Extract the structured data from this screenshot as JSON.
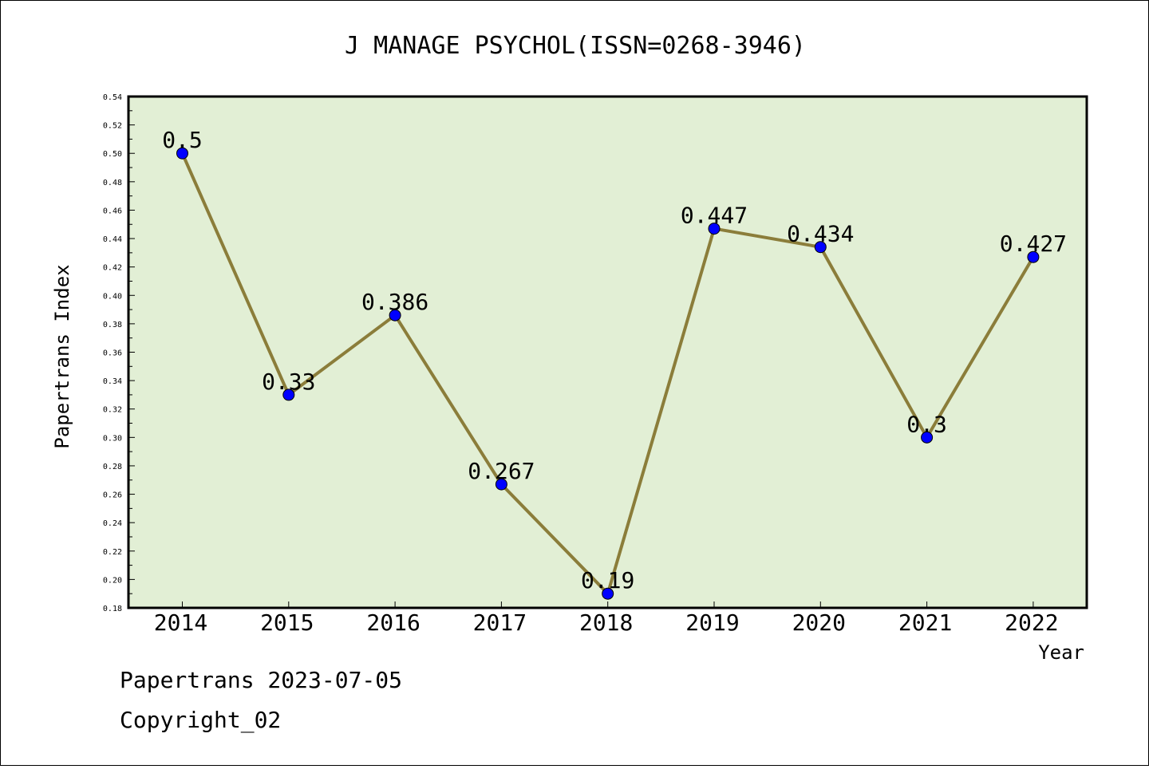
{
  "chart_data": {
    "type": "line",
    "title": "J MANAGE PSYCHOL(ISSN=0268-3946)",
    "xlabel": "Year",
    "ylabel": "Papertrans Index",
    "categories": [
      "2014",
      "2015",
      "2016",
      "2017",
      "2018",
      "2019",
      "2020",
      "2021",
      "2022"
    ],
    "series": [
      {
        "values": [
          0.5,
          0.33,
          0.386,
          0.267,
          0.19,
          0.447,
          0.434,
          0.3,
          0.427
        ],
        "labels": [
          "0.5",
          "0.33",
          "0.386",
          "0.267",
          "0.19",
          "0.447",
          "0.434",
          "0.3",
          "0.427"
        ]
      }
    ],
    "ylim": [
      0.18,
      0.54
    ],
    "yticks": [
      "0.18",
      "0.20",
      "0.22",
      "0.24",
      "0.26",
      "0.28",
      "0.30",
      "0.32",
      "0.34",
      "0.36",
      "0.38",
      "0.40",
      "0.42",
      "0.44",
      "0.46",
      "0.48",
      "0.50",
      "0.52",
      "0.54"
    ],
    "grid": false,
    "colors": {
      "plot_background": "#e2efd5",
      "line": "#8b7d3a",
      "marker": "#0000ff"
    }
  },
  "footer": {
    "date_line": "Papertrans 2023-07-05",
    "copyright": "Copyright_02"
  }
}
